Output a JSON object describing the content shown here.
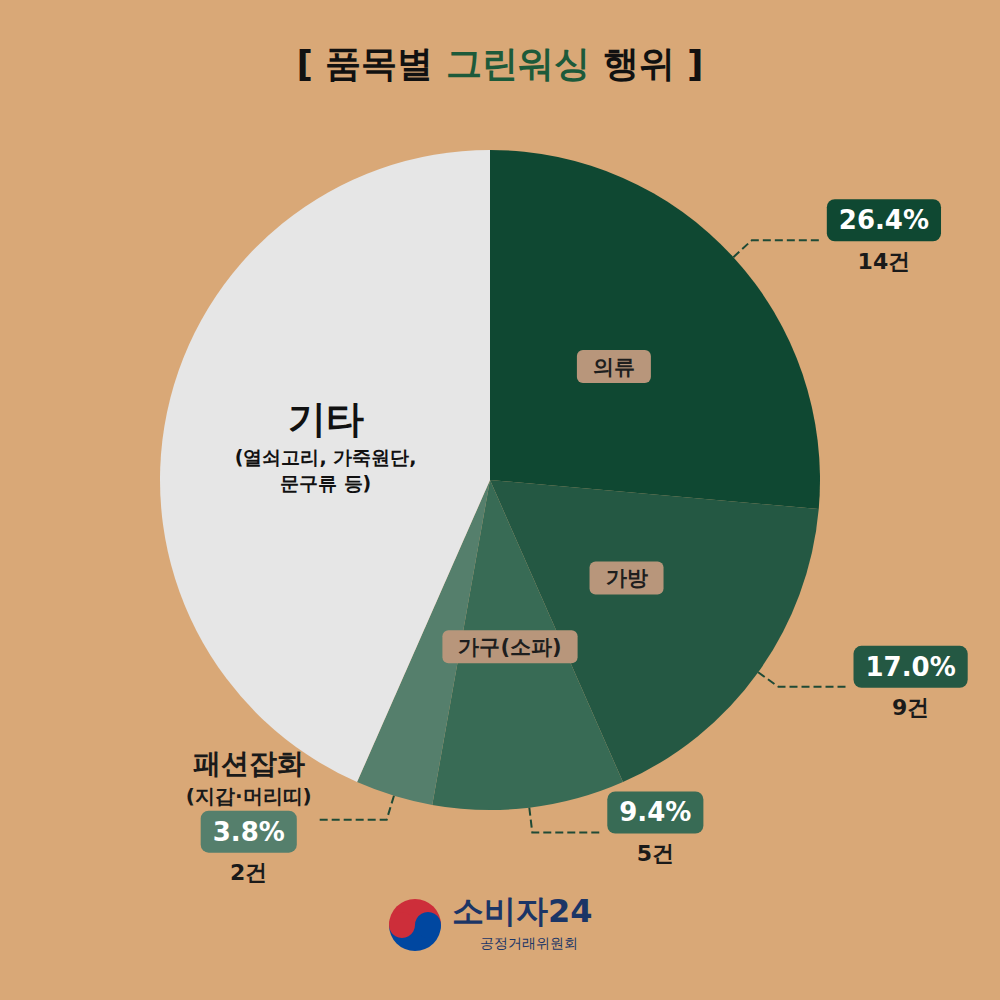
{
  "chart_data": {
    "type": "pie",
    "title": "[ 품목별 그린워싱 행위 ]",
    "title_highlight": "그린워싱",
    "categories": [
      "의류",
      "가방",
      "가구(소파)",
      "패션잡화",
      "기타"
    ],
    "category_notes": [
      null,
      null,
      null,
      "(지갑·머리띠)",
      "(열쇠고리, 가죽원단,\n문구류 등)"
    ],
    "values": [
      26.4,
      17.0,
      9.4,
      3.8,
      43.4
    ],
    "value_labels": [
      "26.4%",
      "17.0%",
      "9.4%",
      "3.8%",
      null
    ],
    "count_labels": [
      "14건",
      "9건",
      "5건",
      "2건",
      null
    ],
    "colors": [
      "#0f4832",
      "#245843",
      "#386b55",
      "#557f6c",
      "#e6e6e6"
    ],
    "data_labels": true,
    "source": "소비자24",
    "publisher": "공정거래위원회"
  }
}
